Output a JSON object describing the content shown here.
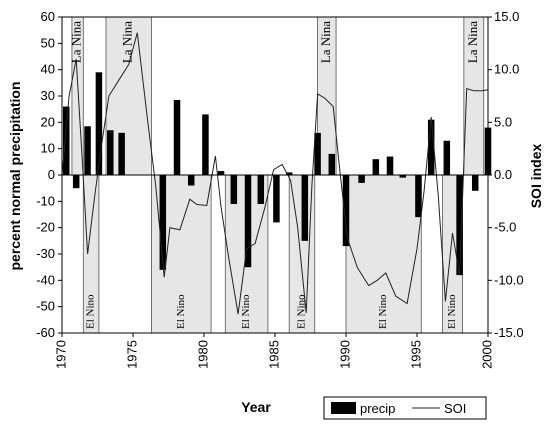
{
  "chart_data": {
    "type": "bar",
    "xlabel": "Year",
    "ylabel_left": "percent normal precipitation",
    "ylabel_right": "SOI index",
    "x_range": [
      1970,
      2000
    ],
    "y_left_range": [
      -60,
      60
    ],
    "y_right_range": [
      -15,
      15
    ],
    "x_ticks": [
      "1970",
      "1975",
      "1980",
      "1985",
      "1990",
      "1995",
      "2000"
    ],
    "y_left_ticks": [
      "60",
      "50",
      "40",
      "30",
      "20",
      "10",
      "0",
      "-10",
      "-20",
      "-30",
      "-40",
      "-50",
      "-60"
    ],
    "y_right_ticks": [
      "15.0",
      "10.0",
      "5.0",
      "0.0",
      "-5.0",
      "-10.0",
      "-15.0"
    ],
    "grid": false,
    "legend": {
      "placement": "bottom-right",
      "items": [
        {
          "label": "precip",
          "kind": "bar"
        },
        {
          "label": "SOI",
          "kind": "line"
        }
      ]
    },
    "episodes": [
      {
        "label": "La Nina",
        "start": 1970.7,
        "end": 1971.5,
        "type": "la-nina"
      },
      {
        "label": "El Nino",
        "start": 1971.5,
        "end": 1972.6,
        "type": "el-nino"
      },
      {
        "label": "La Nina",
        "start": 1973.1,
        "end": 1976.3,
        "type": "la-nina"
      },
      {
        "label": "El Nino",
        "start": 1976.3,
        "end": 1980.5,
        "type": "el-nino"
      },
      {
        "label": "El Nino",
        "start": 1981.5,
        "end": 1984.5,
        "type": "el-nino"
      },
      {
        "label": "El Nino",
        "start": 1986.0,
        "end": 1987.8,
        "type": "el-nino"
      },
      {
        "label": "La Nina",
        "start": 1988.0,
        "end": 1989.3,
        "type": "la-nina"
      },
      {
        "label": "El Nino",
        "start": 1990.0,
        "end": 1995.3,
        "type": "el-nino"
      },
      {
        "label": "El Nino",
        "start": 1996.8,
        "end": 1998.2,
        "type": "el-nino"
      },
      {
        "label": "La Nina",
        "start": 1998.3,
        "end": 1999.7,
        "type": "la-nina"
      }
    ],
    "series": [
      {
        "name": "precip",
        "kind": "bar",
        "x": [
          1970.3,
          1971.0,
          1971.8,
          1972.6,
          1973.4,
          1974.2,
          1975.2,
          1977.1,
          1978.1,
          1979.1,
          1980.1,
          1981.2,
          1982.1,
          1983.1,
          1984.0,
          1985.1,
          1986.0,
          1987.1,
          1988.0,
          1989.0,
          1990.0,
          1991.1,
          1992.1,
          1993.1,
          1994.0,
          1995.1,
          1996.0,
          1997.1,
          1998.0,
          1999.1,
          2000.0
        ],
        "values": [
          26,
          -5,
          18.5,
          39,
          17,
          16,
          0,
          -36,
          28.5,
          -4,
          23,
          1.5,
          -11,
          -35,
          -11,
          -18,
          1,
          -25,
          16,
          8,
          -27,
          -3,
          6,
          7,
          -1,
          -16,
          21,
          13,
          -38,
          -6,
          18
        ]
      },
      {
        "name": "SOI",
        "kind": "line",
        "x": [
          1970.0,
          1970.5,
          1971.0,
          1971.4,
          1971.8,
          1972.3,
          1972.8,
          1973.3,
          1974.0,
          1974.7,
          1975.3,
          1976.0,
          1976.6,
          1977.2,
          1977.6,
          1978.3,
          1979.0,
          1979.5,
          1980.2,
          1980.8,
          1981.2,
          1981.7,
          1982.4,
          1983.0,
          1983.6,
          1984.3,
          1984.9,
          1985.5,
          1986.1,
          1986.6,
          1987.2,
          1987.6,
          1988.0,
          1988.5,
          1989.1,
          1989.6,
          1990.1,
          1990.8,
          1991.6,
          1992.2,
          1992.8,
          1993.5,
          1994.3,
          1995.0,
          1995.5,
          1996.0,
          1996.5,
          1997.0,
          1997.5,
          1998.0,
          1998.5,
          1999.0,
          1999.6,
          2000.0
        ],
        "values": [
          0,
          7.5,
          11,
          2,
          -7.5,
          -2,
          3,
          7.5,
          9,
          10.5,
          13.5,
          5.5,
          -1,
          -9.7,
          -5,
          -5.2,
          -2.3,
          -2.8,
          -2.9,
          1.8,
          -3,
          -7.5,
          -13.2,
          -7,
          -6.5,
          -3,
          0.5,
          1,
          -0.5,
          -5,
          -13.1,
          -1,
          7.7,
          7.3,
          6.5,
          0,
          -6,
          -8.8,
          -10.5,
          -10,
          -9.3,
          -11.5,
          -12.2,
          -7,
          -1.5,
          5.5,
          -2,
          -12,
          -5.5,
          -9.5,
          8.2,
          8,
          8,
          8.1
        ]
      }
    ]
  }
}
